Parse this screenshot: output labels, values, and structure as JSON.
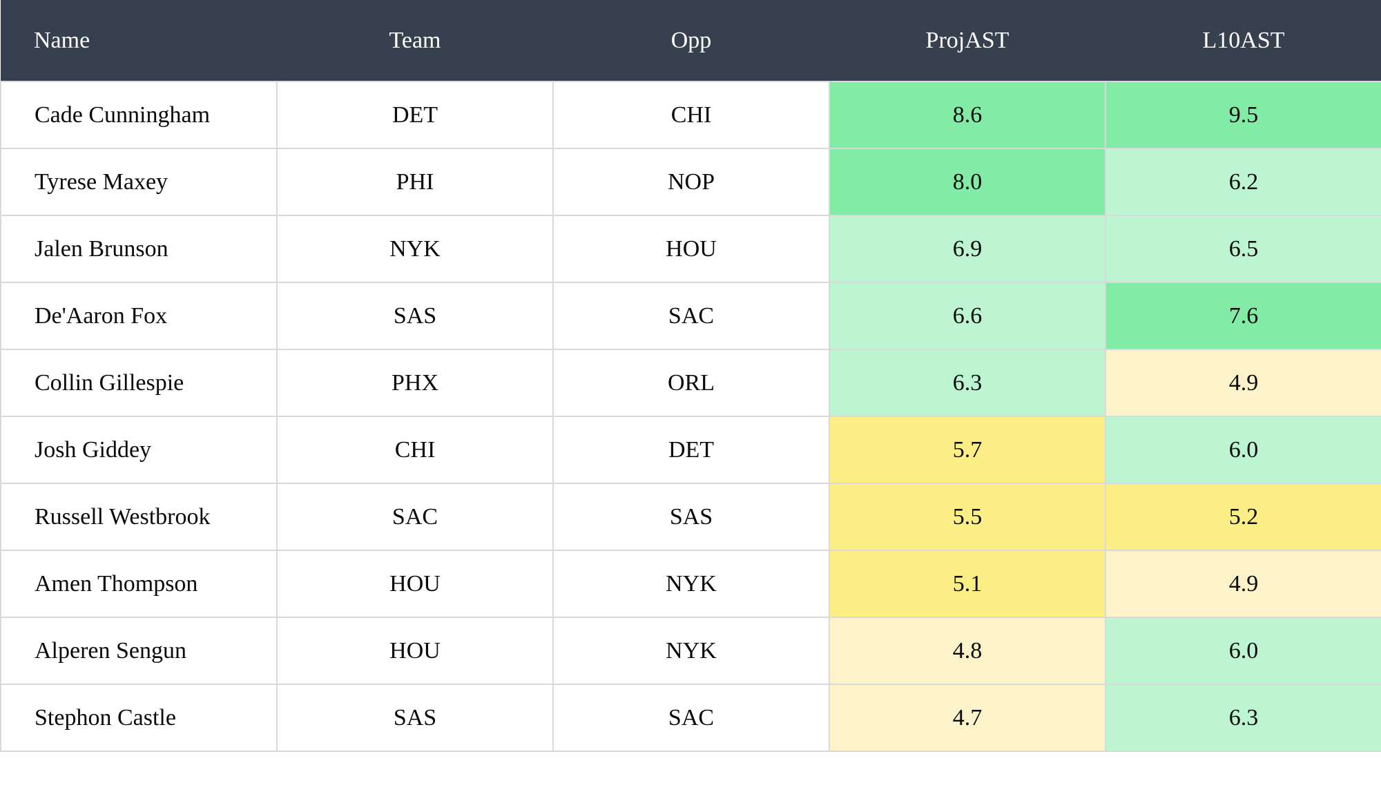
{
  "theme": {
    "header_bg": "#37404E",
    "header_text": "#FFFFFF",
    "cell_text": "#0A0A0A",
    "border": "#D9D9D9",
    "tiers": {
      "green_strong": "#82EBA6",
      "green_light": "#BDF4D2",
      "yellow_bright": "#FBEE85",
      "yellow_pale": "#FCF3CB"
    }
  },
  "table": {
    "columns": [
      {
        "key": "name",
        "label": "Name"
      },
      {
        "key": "team",
        "label": "Team"
      },
      {
        "key": "opp",
        "label": "Opp"
      },
      {
        "key": "proj_ast",
        "label": "ProjAST"
      },
      {
        "key": "l10_ast",
        "label": "L10AST"
      }
    ],
    "rows": [
      {
        "name": "Cade Cunningham",
        "team": "DET",
        "opp": "CHI",
        "proj_ast": "8.6",
        "proj_tier": "green_strong",
        "l10_ast": "9.5",
        "l10_tier": "green_strong"
      },
      {
        "name": "Tyrese Maxey",
        "team": "PHI",
        "opp": "NOP",
        "proj_ast": "8.0",
        "proj_tier": "green_strong",
        "l10_ast": "6.2",
        "l10_tier": "green_light"
      },
      {
        "name": "Jalen Brunson",
        "team": "NYK",
        "opp": "HOU",
        "proj_ast": "6.9",
        "proj_tier": "green_light",
        "l10_ast": "6.5",
        "l10_tier": "green_light"
      },
      {
        "name": "De'Aaron Fox",
        "team": "SAS",
        "opp": "SAC",
        "proj_ast": "6.6",
        "proj_tier": "green_light",
        "l10_ast": "7.6",
        "l10_tier": "green_strong"
      },
      {
        "name": "Collin Gillespie",
        "team": "PHX",
        "opp": "ORL",
        "proj_ast": "6.3",
        "proj_tier": "green_light",
        "l10_ast": "4.9",
        "l10_tier": "yellow_pale"
      },
      {
        "name": "Josh Giddey",
        "team": "CHI",
        "opp": "DET",
        "proj_ast": "5.7",
        "proj_tier": "yellow_bright",
        "l10_ast": "6.0",
        "l10_tier": "green_light"
      },
      {
        "name": "Russell Westbrook",
        "team": "SAC",
        "opp": "SAS",
        "proj_ast": "5.5",
        "proj_tier": "yellow_bright",
        "l10_ast": "5.2",
        "l10_tier": "yellow_bright"
      },
      {
        "name": "Amen Thompson",
        "team": "HOU",
        "opp": "NYK",
        "proj_ast": "5.1",
        "proj_tier": "yellow_bright",
        "l10_ast": "4.9",
        "l10_tier": "yellow_pale"
      },
      {
        "name": "Alperen Sengun",
        "team": "HOU",
        "opp": "NYK",
        "proj_ast": "4.8",
        "proj_tier": "yellow_pale",
        "l10_ast": "6.0",
        "l10_tier": "green_light"
      },
      {
        "name": "Stephon Castle",
        "team": "SAS",
        "opp": "SAC",
        "proj_ast": "4.7",
        "proj_tier": "yellow_pale",
        "l10_ast": "6.3",
        "l10_tier": "green_light"
      }
    ]
  }
}
